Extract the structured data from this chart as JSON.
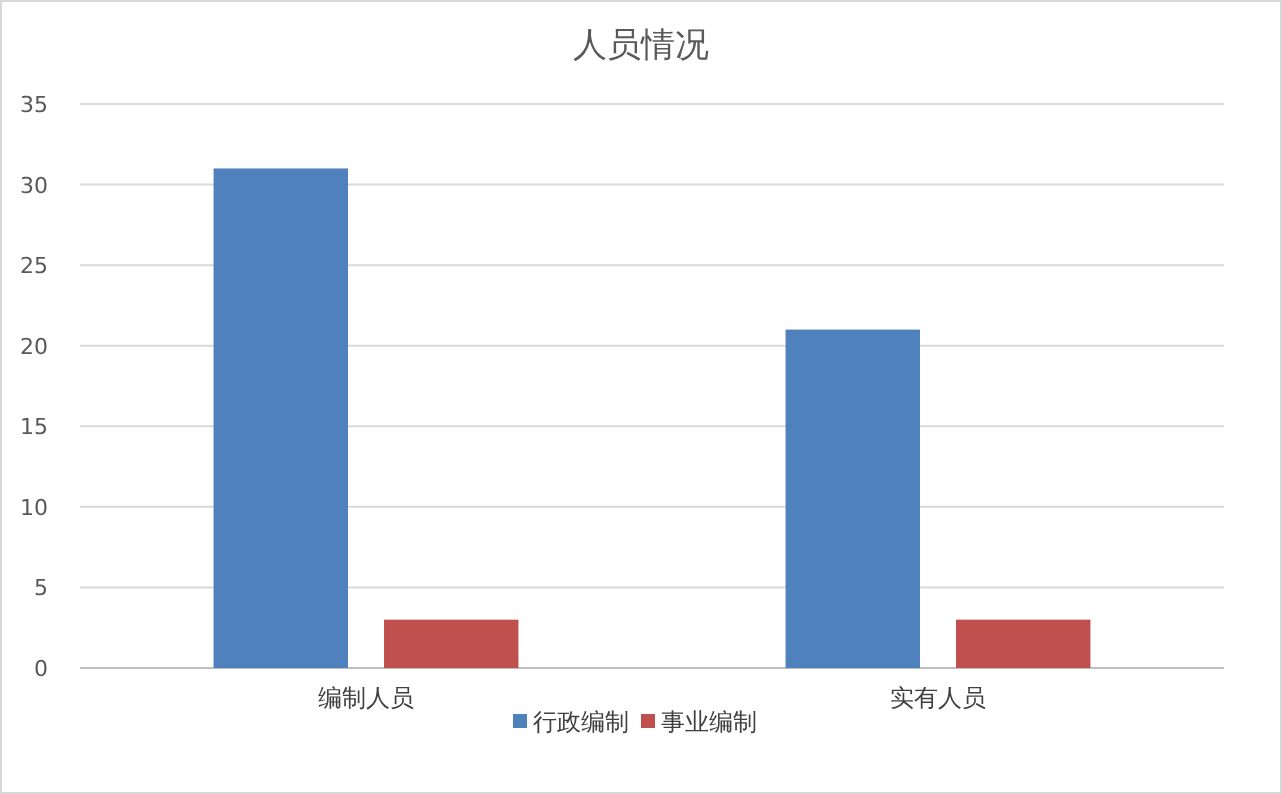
{
  "chart_data": {
    "type": "bar",
    "title": "人员情况",
    "categories": [
      "编制人员",
      "实有人员"
    ],
    "series": [
      {
        "name": "行政编制",
        "color": "#4f81bd",
        "values": [
          31,
          21
        ]
      },
      {
        "name": "事业编制",
        "color": "#c0504d",
        "values": [
          3,
          3
        ]
      }
    ],
    "ylim": [
      0,
      35
    ],
    "yticks": [
      0,
      5,
      10,
      15,
      20,
      25,
      30,
      35
    ],
    "grid": "y",
    "legend": "bottom"
  }
}
